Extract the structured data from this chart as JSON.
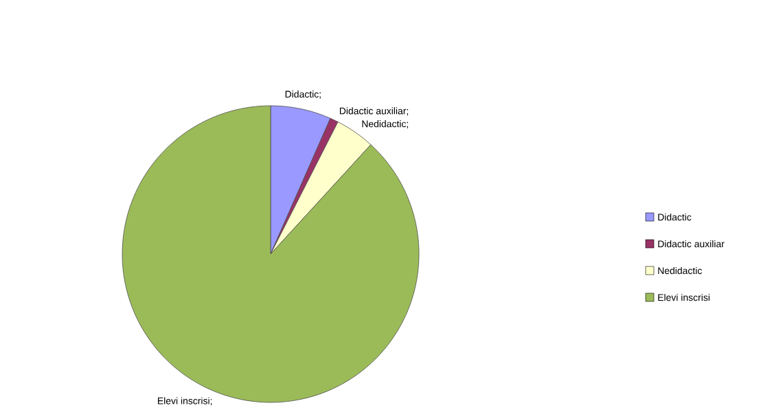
{
  "chart_data": {
    "type": "pie",
    "categories": [
      "Didactic",
      "Didactic auxiliar",
      "Nedidactic",
      "Elevi inscrisi"
    ],
    "values": [
      6.6,
      0.9,
      4.3,
      88.2
    ],
    "colors": [
      "#9999ff",
      "#993366",
      "#ffffcc",
      "#9bbb59"
    ],
    "value_labels": [
      "Didactic;",
      "Didactic auxiliar;",
      "Nedidactic;",
      "Elevi inscrisi;"
    ],
    "legend": "right"
  }
}
